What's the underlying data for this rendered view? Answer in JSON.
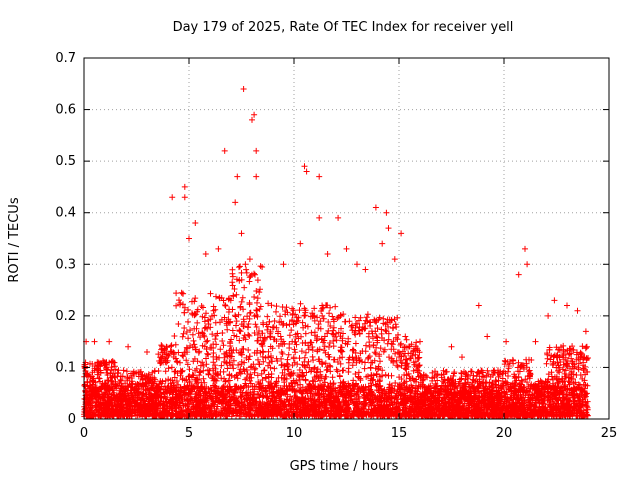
{
  "chart_data": {
    "type": "scatter",
    "title": "Day 179 of 2025, Rate Of TEC Index for receiver yell",
    "xlabel": "GPS time / hours",
    "ylabel": "ROTI / TECUs",
    "xlim": [
      0,
      25
    ],
    "ylim": [
      0,
      0.7
    ],
    "xticks": [
      0,
      5,
      10,
      15,
      20,
      25
    ],
    "yticks": [
      0,
      0.1,
      0.2,
      0.3,
      0.4,
      0.5,
      0.6,
      0.7
    ],
    "xtick_labels": [
      "0",
      "5",
      "10",
      "15",
      "20",
      "25"
    ],
    "ytick_labels": [
      "0",
      "0.1",
      "0.2",
      "0.3",
      "0.4",
      "0.5",
      "0.6",
      "0.7"
    ],
    "grid": true,
    "marker": "+",
    "color": "#ff0000",
    "series": [
      {
        "name": "ROTI",
        "points": [
          [
            0.1,
            0.15
          ],
          [
            0.5,
            0.15
          ],
          [
            1.2,
            0.15
          ],
          [
            2.1,
            0.14
          ],
          [
            3.0,
            0.13
          ],
          [
            4.2,
            0.43
          ],
          [
            4.8,
            0.45
          ],
          [
            4.8,
            0.43
          ],
          [
            5.0,
            0.35
          ],
          [
            5.3,
            0.38
          ],
          [
            5.8,
            0.32
          ],
          [
            6.4,
            0.33
          ],
          [
            6.7,
            0.52
          ],
          [
            7.2,
            0.42
          ],
          [
            7.3,
            0.47
          ],
          [
            7.5,
            0.36
          ],
          [
            7.9,
            0.31
          ],
          [
            8.0,
            0.58
          ],
          [
            8.1,
            0.59
          ],
          [
            8.2,
            0.47
          ],
          [
            7.6,
            0.64
          ],
          [
            8.2,
            0.52
          ],
          [
            9.5,
            0.3
          ],
          [
            10.3,
            0.34
          ],
          [
            10.5,
            0.49
          ],
          [
            10.6,
            0.48
          ],
          [
            11.2,
            0.47
          ],
          [
            11.2,
            0.39
          ],
          [
            11.6,
            0.32
          ],
          [
            12.1,
            0.39
          ],
          [
            12.5,
            0.33
          ],
          [
            13.0,
            0.3
          ],
          [
            13.4,
            0.29
          ],
          [
            13.9,
            0.41
          ],
          [
            14.2,
            0.34
          ],
          [
            14.4,
            0.4
          ],
          [
            14.5,
            0.37
          ],
          [
            14.8,
            0.31
          ],
          [
            15.1,
            0.36
          ],
          [
            15.3,
            0.16
          ],
          [
            16.0,
            0.15
          ],
          [
            17.5,
            0.14
          ],
          [
            18.0,
            0.12
          ],
          [
            18.8,
            0.22
          ],
          [
            19.2,
            0.16
          ],
          [
            20.1,
            0.15
          ],
          [
            20.7,
            0.28
          ],
          [
            21.0,
            0.33
          ],
          [
            21.1,
            0.3
          ],
          [
            21.5,
            0.15
          ],
          [
            22.1,
            0.2
          ],
          [
            22.4,
            0.23
          ],
          [
            23.0,
            0.22
          ],
          [
            23.5,
            0.21
          ],
          [
            23.9,
            0.17
          ]
        ]
      }
    ]
  }
}
